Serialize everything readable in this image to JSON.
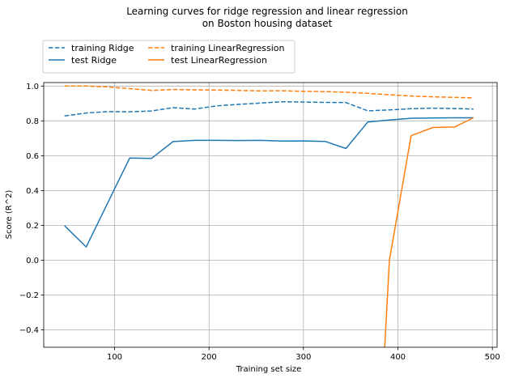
{
  "chart_data": {
    "type": "line",
    "title": "Learning curves for ridge regression and linear regression",
    "subtitle": "on Boston housing dataset",
    "xlabel": "Training set size",
    "ylabel": "Score (R^2)",
    "xlim": [
      25,
      505
    ],
    "ylim": [
      -0.5,
      1.02
    ],
    "xticks": [
      100,
      200,
      300,
      400,
      500
    ],
    "xtick_labels": [
      "100",
      "200",
      "300",
      "400",
      "500"
    ],
    "yticks": [
      -0.4,
      -0.2,
      0.0,
      0.2,
      0.4,
      0.6,
      0.8,
      1.0
    ],
    "ytick_labels": [
      "−0.4",
      "−0.2",
      "0.0",
      "0.2",
      "0.4",
      "0.6",
      "0.8",
      "1.0"
    ],
    "grid": true,
    "legend_position": "top-left, above plot",
    "series": [
      {
        "name": "training Ridge",
        "color": "#1f77b4",
        "style": "dashed",
        "x": [
          47,
          70,
          93,
          116,
          139,
          162,
          185,
          208,
          231,
          254,
          277,
          300,
          323,
          345,
          368,
          391,
          414,
          437,
          460,
          480
        ],
        "y": [
          0.828,
          0.845,
          0.853,
          0.852,
          0.857,
          0.876,
          0.868,
          0.886,
          0.895,
          0.902,
          0.91,
          0.908,
          0.906,
          0.905,
          0.858,
          0.863,
          0.87,
          0.873,
          0.871,
          0.868
        ]
      },
      {
        "name": "test Ridge",
        "color": "#1f77b4",
        "style": "solid",
        "x": [
          47,
          70,
          93,
          116,
          139,
          162,
          185,
          208,
          231,
          254,
          277,
          300,
          323,
          345,
          368,
          391,
          414,
          437,
          460,
          480
        ],
        "y": [
          0.198,
          0.076,
          0.331,
          0.587,
          0.584,
          0.681,
          0.688,
          0.688,
          0.687,
          0.688,
          0.684,
          0.685,
          0.682,
          0.641,
          0.793,
          0.805,
          0.815,
          0.817,
          0.818,
          0.818
        ]
      },
      {
        "name": "training LinearRegression",
        "color": "#ff7f0e",
        "style": "dashed",
        "x": [
          47,
          70,
          93,
          116,
          139,
          162,
          185,
          208,
          231,
          254,
          277,
          300,
          323,
          345,
          368,
          391,
          414,
          437,
          460,
          480
        ],
        "y": [
          1.0,
          1.0,
          0.995,
          0.985,
          0.975,
          0.98,
          0.978,
          0.977,
          0.975,
          0.972,
          0.973,
          0.97,
          0.968,
          0.964,
          0.958,
          0.95,
          0.943,
          0.938,
          0.935,
          0.932
        ]
      },
      {
        "name": "test LinearRegression",
        "color": "#ff7f0e",
        "style": "solid",
        "x": [
          383,
          386,
          391,
          414,
          437,
          460,
          480
        ],
        "y": [
          -0.55,
          -0.5,
          0.0,
          0.715,
          0.762,
          0.765,
          0.818
        ]
      }
    ]
  }
}
